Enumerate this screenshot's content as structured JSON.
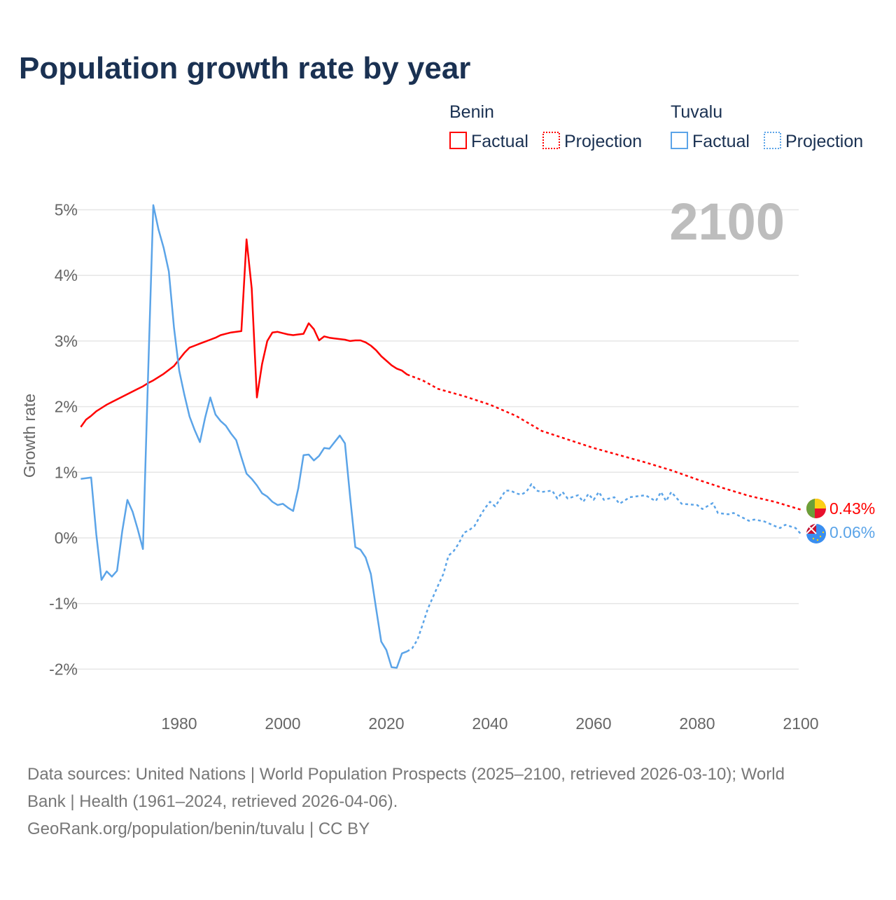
{
  "chart_data": {
    "type": "line",
    "title": "Population growth rate by year",
    "ylabel": "Growth rate",
    "xlabel": "",
    "xlim": [
      1961,
      2100
    ],
    "ylim": [
      -2,
      5
    ],
    "x_ticks": [
      "1980",
      "2000",
      "2020",
      "2040",
      "2060",
      "2080",
      "2100"
    ],
    "x_tick_values": [
      1980,
      2000,
      2020,
      2040,
      2060,
      2080,
      2100
    ],
    "y_ticks": [
      "-2%",
      "-1%",
      "0%",
      "1%",
      "2%",
      "3%",
      "4%",
      "5%"
    ],
    "y_tick_values": [
      -2,
      -1,
      0,
      1,
      2,
      3,
      4,
      5
    ],
    "grid": true,
    "year_label": "2100",
    "legend": {
      "placement": "top-right",
      "groups": [
        {
          "name": "Benin",
          "factual": "Factual",
          "projection": "Projection",
          "color": "#ff0000"
        },
        {
          "name": "Tuvalu",
          "factual": "Factual",
          "projection": "Projection",
          "color": "#5ba4e8"
        }
      ]
    },
    "series": [
      {
        "name": "Benin",
        "kind": "factual",
        "color": "#ff0000",
        "x": [
          1961,
          1962,
          1963,
          1964,
          1965,
          1966,
          1967,
          1968,
          1969,
          1970,
          1971,
          1972,
          1973,
          1974,
          1975,
          1976,
          1977,
          1978,
          1979,
          1980,
          1981,
          1982,
          1983,
          1984,
          1985,
          1986,
          1987,
          1988,
          1989,
          1990,
          1991,
          1992,
          1993,
          1994,
          1995,
          1996,
          1997,
          1998,
          1999,
          2000,
          2001,
          2002,
          2003,
          2004,
          2005,
          2006,
          2007,
          2008,
          2009,
          2010,
          2011,
          2012,
          2013,
          2014,
          2015,
          2016,
          2017,
          2018,
          2019,
          2020,
          2021,
          2022,
          2023,
          2024
        ],
        "y": [
          1.69,
          1.8,
          1.86,
          1.93,
          1.98,
          2.03,
          2.07,
          2.11,
          2.15,
          2.19,
          2.23,
          2.27,
          2.31,
          2.36,
          2.4,
          2.45,
          2.5,
          2.56,
          2.62,
          2.72,
          2.82,
          2.9,
          2.93,
          2.96,
          2.99,
          3.02,
          3.05,
          3.09,
          3.11,
          3.13,
          3.14,
          3.15,
          4.55,
          3.8,
          2.14,
          2.65,
          3.0,
          3.13,
          3.14,
          3.12,
          3.1,
          3.09,
          3.1,
          3.11,
          3.27,
          3.18,
          3.01,
          3.07,
          3.05,
          3.04,
          3.03,
          3.02,
          3.0,
          3.01,
          3.01,
          2.98,
          2.93,
          2.86,
          2.77,
          2.7,
          2.63,
          2.58,
          2.55,
          2.49
        ]
      },
      {
        "name": "Benin",
        "kind": "projection",
        "color": "#ff0000",
        "x": [
          2024,
          2027,
          2030,
          2035,
          2040,
          2045,
          2050,
          2055,
          2060,
          2065,
          2070,
          2075,
          2080,
          2085,
          2090,
          2095,
          2100
        ],
        "y": [
          2.49,
          2.4,
          2.27,
          2.16,
          2.03,
          1.86,
          1.63,
          1.5,
          1.37,
          1.26,
          1.15,
          1.03,
          0.89,
          0.76,
          0.64,
          0.55,
          0.43
        ]
      },
      {
        "name": "Tuvalu",
        "kind": "factual",
        "color": "#5ba4e8",
        "x": [
          1961,
          1962,
          1963,
          1964,
          1965,
          1966,
          1967,
          1968,
          1969,
          1970,
          1971,
          1972,
          1973,
          1974,
          1975,
          1976,
          1977,
          1978,
          1979,
          1980,
          1981,
          1982,
          1983,
          1984,
          1985,
          1986,
          1987,
          1988,
          1989,
          1990,
          1991,
          1992,
          1993,
          1994,
          1995,
          1996,
          1997,
          1998,
          1999,
          2000,
          2001,
          2002,
          2003,
          2004,
          2005,
          2006,
          2007,
          2008,
          2009,
          2010,
          2011,
          2012,
          2013,
          2014,
          2015,
          2016,
          2017,
          2018,
          2019,
          2020,
          2021,
          2022,
          2023,
          2024
        ],
        "y": [
          0.9,
          0.91,
          0.92,
          0.05,
          -0.64,
          -0.51,
          -0.59,
          -0.5,
          0.1,
          0.58,
          0.4,
          0.13,
          -0.17,
          2.5,
          5.07,
          4.7,
          4.42,
          4.06,
          3.2,
          2.55,
          2.18,
          1.85,
          1.64,
          1.46,
          1.83,
          2.14,
          1.88,
          1.78,
          1.71,
          1.59,
          1.49,
          1.23,
          0.98,
          0.9,
          0.8,
          0.68,
          0.63,
          0.55,
          0.5,
          0.52,
          0.46,
          0.41,
          0.76,
          1.26,
          1.27,
          1.18,
          1.25,
          1.37,
          1.36,
          1.46,
          1.56,
          1.44,
          0.62,
          -0.14,
          -0.18,
          -0.3,
          -0.55,
          -1.07,
          -1.58,
          -1.71,
          -1.97,
          -1.98,
          -1.76,
          -1.73
        ]
      },
      {
        "name": "Tuvalu",
        "kind": "projection",
        "color": "#5ba4e8",
        "x": [
          2024,
          2025,
          2026,
          2027,
          2028,
          2029,
          2030,
          2031,
          2032,
          2033,
          2034,
          2035,
          2036,
          2037,
          2038,
          2039,
          2040,
          2041,
          2042,
          2043,
          2044,
          2045,
          2046,
          2047,
          2048,
          2049,
          2050,
          2052,
          2053,
          2054,
          2055,
          2057,
          2058,
          2059,
          2060,
          2061,
          2062,
          2064,
          2065,
          2067,
          2070,
          2072,
          2073,
          2074,
          2075,
          2077,
          2080,
          2081,
          2083,
          2084,
          2086,
          2087,
          2089,
          2090,
          2091,
          2093,
          2095,
          2096,
          2097,
          2099,
          2100
        ],
        "y": [
          -1.73,
          -1.68,
          -1.55,
          -1.32,
          -1.08,
          -0.9,
          -0.72,
          -0.55,
          -0.27,
          -0.2,
          -0.08,
          0.08,
          0.12,
          0.18,
          0.32,
          0.45,
          0.55,
          0.48,
          0.6,
          0.72,
          0.72,
          0.68,
          0.66,
          0.7,
          0.82,
          0.72,
          0.7,
          0.72,
          0.6,
          0.7,
          0.6,
          0.65,
          0.55,
          0.67,
          0.58,
          0.7,
          0.58,
          0.62,
          0.52,
          0.62,
          0.65,
          0.56,
          0.7,
          0.56,
          0.7,
          0.52,
          0.5,
          0.44,
          0.53,
          0.38,
          0.36,
          0.38,
          0.3,
          0.26,
          0.28,
          0.25,
          0.18,
          0.15,
          0.2,
          0.15,
          0.06
        ]
      }
    ],
    "end_labels": [
      {
        "name": "Benin",
        "text": "0.43%",
        "value": 0.43,
        "color": "#ff0000"
      },
      {
        "name": "Tuvalu",
        "text": "0.06%",
        "value": 0.06,
        "color": "#5ba4e8"
      }
    ]
  },
  "footer": {
    "line1": "Data sources: United Nations | World Population Prospects (2025–2100, retrieved 2026-03-10); World",
    "line2": "Bank | Health (1961–2024, retrieved 2026-04-06).",
    "line3": "GeoRank.org/population/benin/tuvalu | CC BY"
  }
}
